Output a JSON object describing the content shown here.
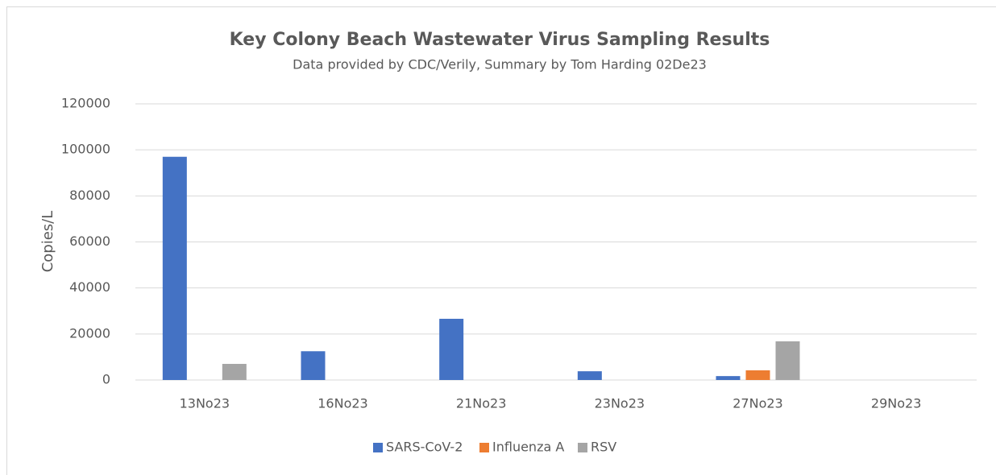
{
  "chart_data": {
    "type": "bar",
    "title": "Key Colony Beach Wastewater Virus Sampling Results",
    "subtitle": "Data provided by CDC/Verily, Summary by Tom Harding 02De23",
    "y_label": "Copies/L",
    "categories": [
      "13No23",
      "16No23",
      "21No23",
      "23No23",
      "27No23",
      "29No23"
    ],
    "series": [
      {
        "name": "SARS-CoV-2",
        "color": "#4472c4",
        "values": [
          97000,
          12500,
          26600,
          3800,
          1700,
          0
        ]
      },
      {
        "name": "Influenza A",
        "color": "#ed7d31",
        "values": [
          0,
          0,
          0,
          0,
          4200,
          0
        ]
      },
      {
        "name": "RSV",
        "color": "#a5a5a5",
        "values": [
          7000,
          0,
          0,
          0,
          16800,
          0
        ]
      }
    ],
    "ylim": [
      0,
      120000
    ],
    "yticks": [
      0,
      20000,
      40000,
      60000,
      80000,
      100000,
      120000
    ],
    "grid": true,
    "legend": "bottom"
  }
}
